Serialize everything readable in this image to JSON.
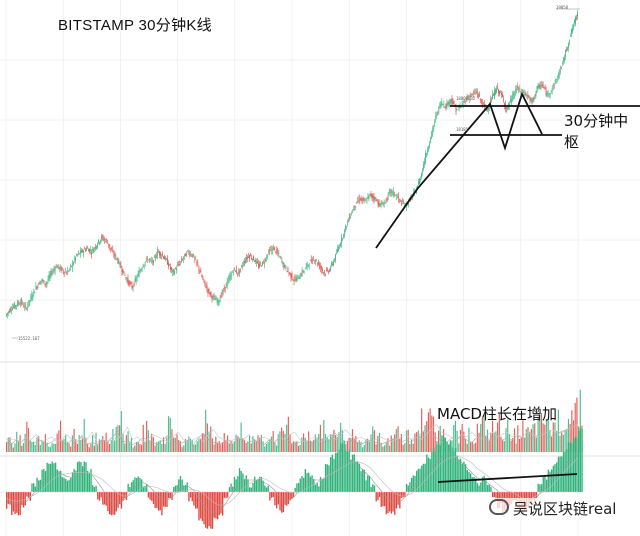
{
  "header": {
    "title": "BITSTAMP   30分钟K线"
  },
  "annotations": {
    "zhongshu_label": "30分钟中枢",
    "macd_label": "MACD柱长在增加"
  },
  "watermark": {
    "text": "吴说区块链real",
    "icon": "wechat-icon"
  },
  "price_tags": {
    "high": "19858",
    "zone_top": "18807.32",
    "zone_bottom": "18181",
    "low": "15522.167"
  },
  "colors": {
    "up": "#2fb37a",
    "down": "#e0473f",
    "line": "#111111",
    "grid": "#e6e6e6"
  },
  "chart_data": [
    {
      "type": "candlestick",
      "series": [
        {
          "values": [
            15600,
            15700,
            15750,
            15800,
            15700,
            15850,
            16000,
            16100,
            16050,
            16200,
            16300,
            16250,
            16200,
            16300,
            16450,
            16500,
            16550,
            16500,
            16600,
            16700,
            16650,
            16500,
            16400,
            16250,
            16100,
            16000,
            16150,
            16300,
            16400,
            16350,
            16500,
            16450,
            16350,
            16200,
            16300,
            16400,
            16500,
            16450,
            16300,
            16100,
            15950,
            15850,
            15800,
            15950,
            16100,
            16250,
            16200,
            16350,
            16450,
            16400,
            16300,
            16350,
            16500,
            16550,
            16450,
            16300,
            16200,
            16100,
            16150,
            16250,
            16350,
            16400,
            16300,
            16200,
            16250,
            16400,
            16600,
            16800,
            17000,
            17150,
            17250,
            17200,
            17300,
            17250,
            17150,
            17200,
            17350,
            17300,
            17200,
            17150,
            17250,
            17350,
            17550,
            17850,
            18100,
            18400,
            18600,
            18550,
            18650,
            18500,
            18550,
            18650,
            18700,
            18750,
            18600,
            18500,
            18650,
            18800,
            18700,
            18500,
            18650,
            18800,
            18750,
            18700,
            18600,
            18800,
            18850,
            18700,
            18800,
            18950,
            19150,
            19400,
            19650,
            19850
          ]
        }
      ]
    },
    {
      "type": "bar",
      "name": "volume",
      "series": [
        {
          "values": [
            3,
            2,
            4,
            3,
            5,
            2,
            3,
            4,
            2,
            3,
            5,
            3,
            2,
            4,
            3,
            6,
            2,
            3,
            2,
            4,
            3,
            5,
            8,
            3,
            4,
            2,
            3,
            5,
            4,
            3,
            2,
            4,
            6,
            3,
            2,
            3,
            4,
            2,
            5,
            7,
            4,
            3,
            2,
            3,
            4,
            3,
            5,
            2,
            3,
            4,
            3,
            2,
            4,
            3,
            5,
            6,
            3,
            2,
            3,
            4,
            2,
            3,
            5,
            3,
            4,
            7,
            5,
            3,
            4,
            3,
            2,
            3,
            4,
            3,
            2,
            3,
            4,
            5,
            3,
            4,
            3,
            5,
            7,
            9,
            6,
            5,
            4,
            3,
            5,
            4,
            6,
            4,
            3,
            5,
            6,
            4,
            5,
            6,
            4,
            5,
            4,
            6,
            5,
            4,
            5,
            6,
            7,
            5,
            6,
            7,
            8,
            9,
            10,
            12
          ]
        }
      ]
    },
    {
      "type": "bar",
      "name": "MACD",
      "series": [
        {
          "values": [
            -2,
            -3,
            -3,
            -2,
            -1,
            1,
            2,
            3,
            4,
            4,
            3,
            2,
            2,
            3,
            4,
            4,
            3,
            1,
            -1,
            -2,
            -3,
            -3,
            -2,
            -1,
            1,
            2,
            2,
            1,
            -1,
            -2,
            -3,
            -2,
            -1,
            1,
            2,
            1,
            -1,
            -2,
            -4,
            -5,
            -5,
            -4,
            -3,
            -1,
            1,
            2,
            3,
            2,
            1,
            2,
            2,
            1,
            -1,
            -2,
            -3,
            -2,
            -1,
            1,
            2,
            3,
            2,
            1,
            2,
            4,
            5,
            6,
            7,
            6,
            5,
            4,
            3,
            2,
            1,
            -1,
            -2,
            -3,
            -3,
            -2,
            -1,
            1,
            2,
            3,
            4,
            5,
            6,
            7,
            8,
            7,
            6,
            5,
            4,
            3,
            2,
            1,
            2,
            1,
            -1,
            -2,
            -3,
            -2,
            -1,
            -2,
            -3,
            -2,
            -1,
            1,
            2,
            3,
            4,
            5,
            6,
            7,
            8,
            9
          ]
        }
      ]
    }
  ]
}
